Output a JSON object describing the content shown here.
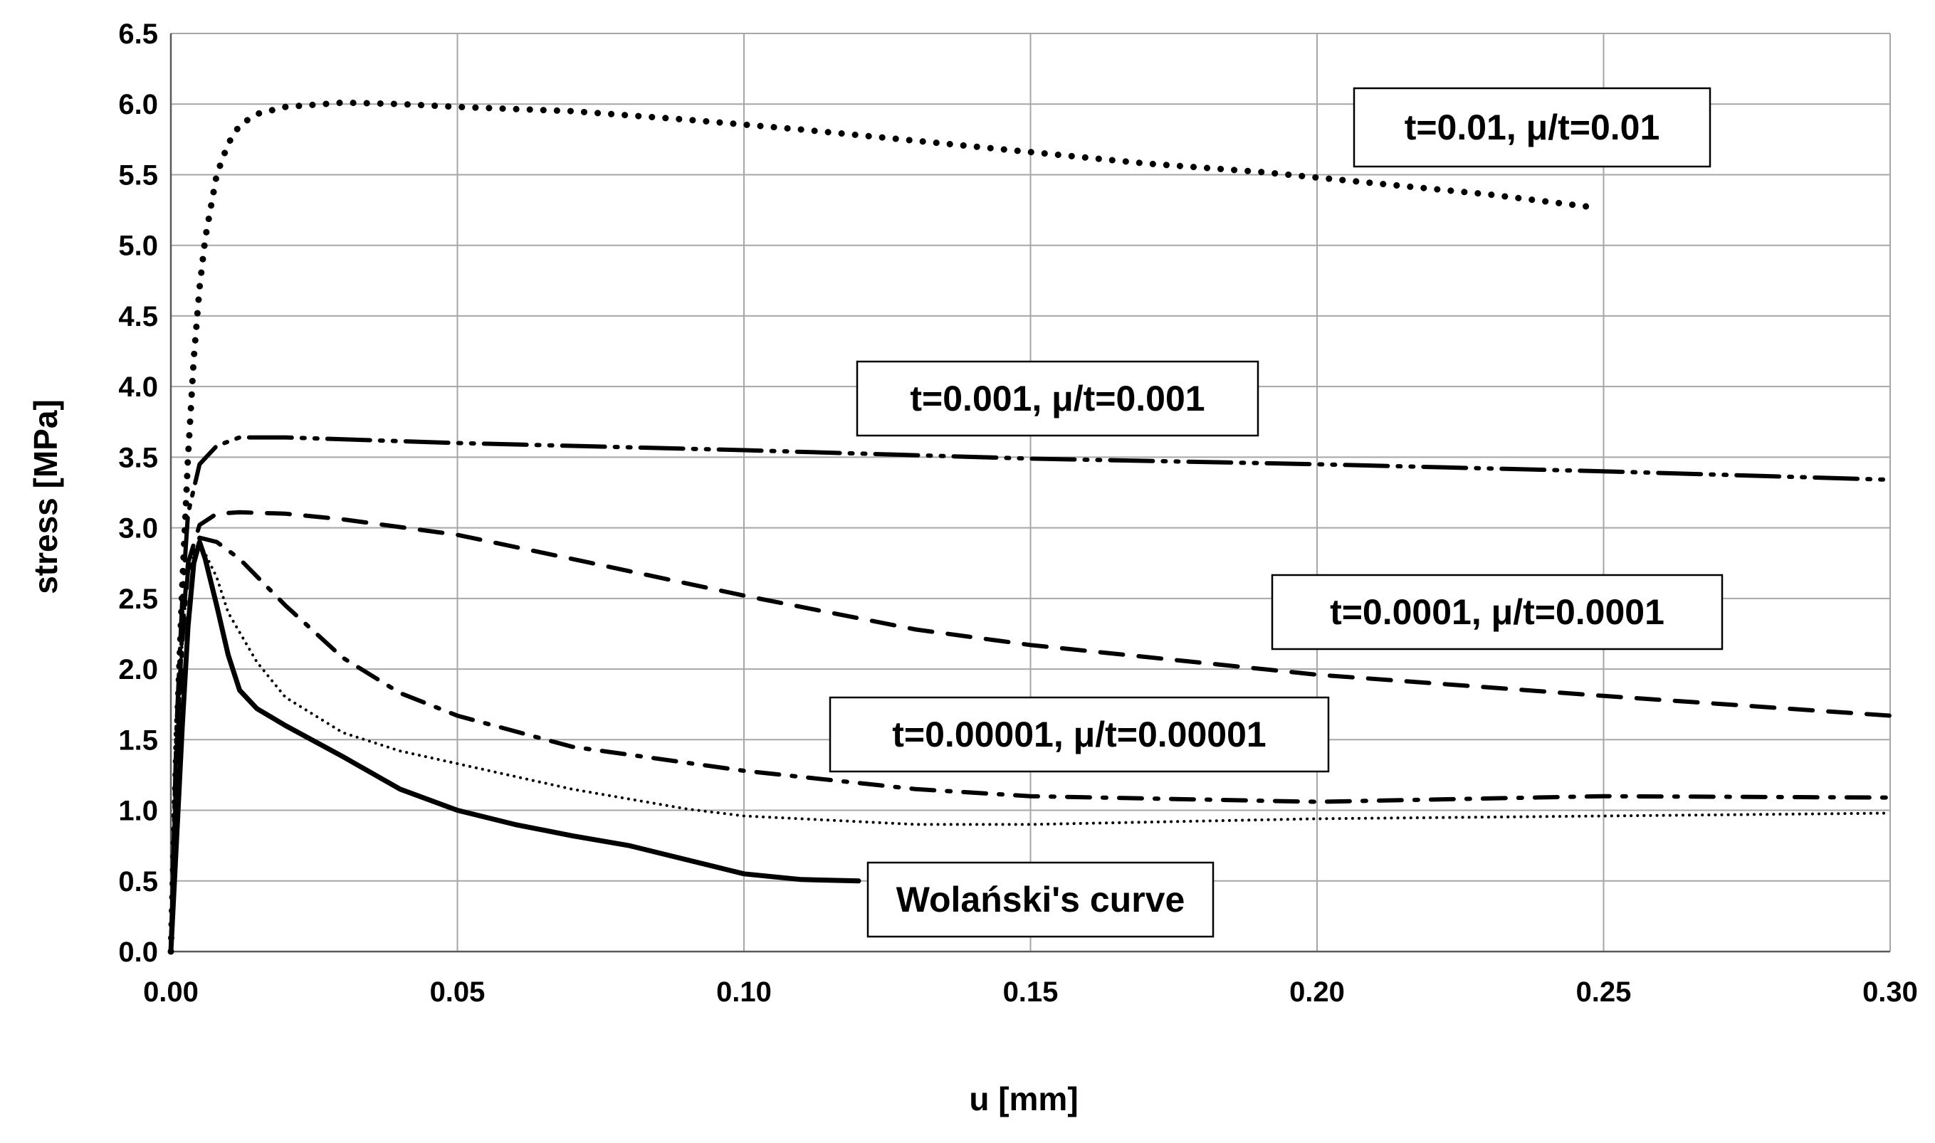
{
  "chart_data": {
    "type": "line",
    "title": "",
    "xlabel": "u [mm]",
    "ylabel": "stress [MPa]",
    "xlim": [
      0,
      0.3
    ],
    "ylim": [
      0,
      6.5
    ],
    "grid": true,
    "x_ticks": [
      "0.00",
      "0.05",
      "0.10",
      "0.15",
      "0.20",
      "0.25",
      "0.30"
    ],
    "y_ticks": [
      "0.0",
      "0.5",
      "1.0",
      "1.5",
      "2.0",
      "2.5",
      "3.0",
      "3.5",
      "4.0",
      "4.5",
      "5.0",
      "5.5",
      "6.0",
      "6.5"
    ],
    "series": [
      {
        "name": "t=0.01, μ/t=0.01",
        "line_style": "heavy-dotted",
        "x": [
          0,
          0.001,
          0.002,
          0.003,
          0.004,
          0.005,
          0.006,
          0.008,
          0.01,
          0.012,
          0.015,
          0.02,
          0.03,
          0.04,
          0.05,
          0.07,
          0.09,
          0.11,
          0.13,
          0.15,
          0.17,
          0.19,
          0.21,
          0.23,
          0.248
        ],
        "y": [
          0,
          1.5,
          2.6,
          3.5,
          4.2,
          4.7,
          5.05,
          5.5,
          5.72,
          5.85,
          5.93,
          5.98,
          6.01,
          6.0,
          5.98,
          5.95,
          5.89,
          5.82,
          5.74,
          5.66,
          5.58,
          5.52,
          5.44,
          5.36,
          5.27
        ]
      },
      {
        "name": "t=0.001, μ/t=0.001",
        "line_style": "long-dash-dot-dot",
        "x": [
          0,
          0.001,
          0.002,
          0.003,
          0.005,
          0.008,
          0.012,
          0.02,
          0.05,
          0.1,
          0.15,
          0.2,
          0.25,
          0.3
        ],
        "y": [
          0,
          1.6,
          2.5,
          3.1,
          3.45,
          3.58,
          3.64,
          3.64,
          3.6,
          3.55,
          3.49,
          3.45,
          3.4,
          3.34
        ]
      },
      {
        "name": "t=0.0001, μ/t=0.0001",
        "line_style": "dashed",
        "x": [
          0,
          0.001,
          0.002,
          0.003,
          0.005,
          0.008,
          0.012,
          0.02,
          0.03,
          0.05,
          0.07,
          0.1,
          0.13,
          0.15,
          0.2,
          0.25,
          0.3
        ],
        "y": [
          0,
          1.4,
          2.3,
          2.75,
          3.02,
          3.1,
          3.11,
          3.1,
          3.06,
          2.95,
          2.78,
          2.52,
          2.28,
          2.17,
          1.96,
          1.81,
          1.67
        ]
      },
      {
        "name": "t=0.00001, μ/t=0.00001",
        "line_style": "dash-dot",
        "x": [
          0,
          0.001,
          0.002,
          0.003,
          0.005,
          0.008,
          0.012,
          0.02,
          0.03,
          0.04,
          0.05,
          0.07,
          0.1,
          0.13,
          0.15,
          0.2,
          0.25,
          0.3
        ],
        "y": [
          0,
          1.3,
          2.2,
          2.7,
          2.93,
          2.9,
          2.78,
          2.45,
          2.08,
          1.83,
          1.67,
          1.45,
          1.28,
          1.15,
          1.1,
          1.06,
          1.1,
          1.09
        ]
      },
      {
        "name": "t=0.00001, μ/t=0.00001",
        "line_style": "fine-dotted",
        "x": [
          0,
          0.001,
          0.002,
          0.003,
          0.005,
          0.008,
          0.01,
          0.015,
          0.02,
          0.03,
          0.04,
          0.05,
          0.07,
          0.09,
          0.1,
          0.13,
          0.15,
          0.2,
          0.25,
          0.3
        ],
        "y": [
          0,
          1.3,
          2.2,
          2.7,
          2.9,
          2.65,
          2.4,
          2.05,
          1.8,
          1.55,
          1.42,
          1.33,
          1.15,
          1.01,
          0.96,
          0.9,
          0.9,
          0.94,
          0.96,
          0.98
        ]
      },
      {
        "name": "Wolański's curve",
        "line_style": "solid",
        "x": [
          0,
          0.001,
          0.002,
          0.003,
          0.004,
          0.005,
          0.006,
          0.008,
          0.01,
          0.012,
          0.015,
          0.02,
          0.03,
          0.04,
          0.05,
          0.06,
          0.07,
          0.08,
          0.09,
          0.1,
          0.11,
          0.12
        ],
        "y": [
          0,
          0.8,
          1.6,
          2.3,
          2.75,
          2.9,
          2.78,
          2.45,
          2.1,
          1.85,
          1.72,
          1.6,
          1.38,
          1.15,
          1.0,
          0.9,
          0.82,
          0.75,
          0.65,
          0.55,
          0.51,
          0.5
        ]
      }
    ],
    "annotations": [
      {
        "id": "a1",
        "text": "t=0.01, μ/t=0.01"
      },
      {
        "id": "a2",
        "text": "t=0.001, μ/t=0.001"
      },
      {
        "id": "a3",
        "text": "t=0.0001, μ/t=0.0001"
      },
      {
        "id": "a4",
        "text": "t=0.00001, μ/t=0.00001"
      },
      {
        "id": "a5",
        "text": "Wolański's curve"
      }
    ]
  }
}
